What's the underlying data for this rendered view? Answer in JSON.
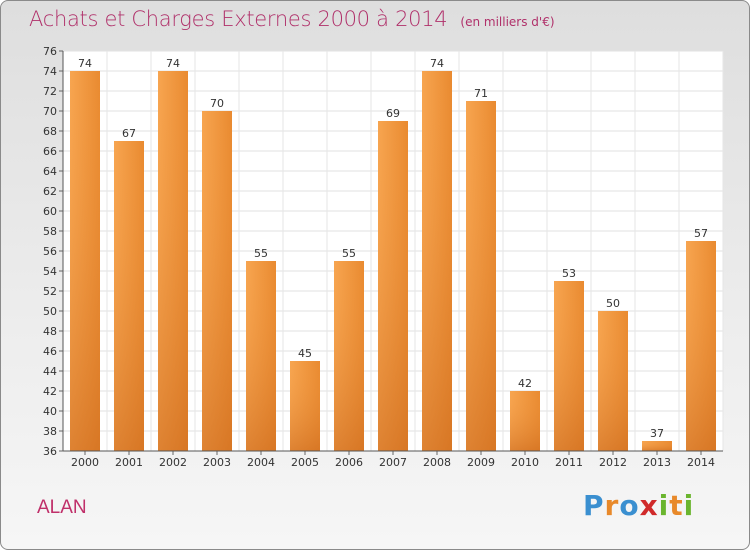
{
  "header": {
    "title": "Achats et Charges Externes 2000 à 2014",
    "unit": "(en milliers d'€)"
  },
  "commune": "ALAN",
  "logo": {
    "letters": [
      "P",
      "r",
      "o",
      "x",
      "i",
      "t",
      "i"
    ],
    "colors": [
      "#3a8fd0",
      "#e8892a",
      "#3a8fd0",
      "#d02a2a",
      "#6ab52e",
      "#e8892a",
      "#6ab52e"
    ]
  },
  "chart_data": {
    "type": "bar",
    "categories": [
      "2000",
      "2001",
      "2002",
      "2003",
      "2004",
      "2005",
      "2006",
      "2007",
      "2008",
      "2009",
      "2010",
      "2011",
      "2012",
      "2013",
      "2014"
    ],
    "values": [
      74,
      67,
      74,
      70,
      55,
      45,
      55,
      69,
      74,
      71,
      42,
      53,
      50,
      37,
      57
    ],
    "title": "Achats et Charges Externes 2000 à 2014",
    "ylim": [
      36,
      76
    ],
    "yticks": [
      36,
      38,
      40,
      42,
      44,
      46,
      48,
      50,
      52,
      54,
      56,
      58,
      60,
      62,
      64,
      66,
      68,
      70,
      72,
      74,
      76
    ],
    "grid": true,
    "bar_color": "#f0913a",
    "bar_color_dark": "#d9701c"
  }
}
